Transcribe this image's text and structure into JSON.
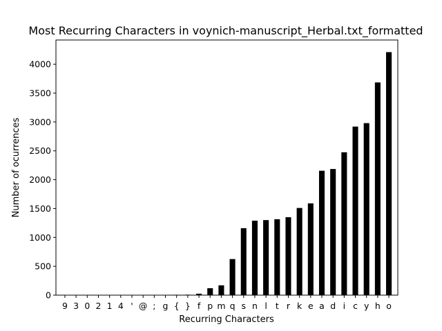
{
  "chart_data": {
    "type": "bar",
    "title": "Most Recurring Characters in voynich-manuscript_Herbal.txt_formatted",
    "xlabel": "Recurring Characters",
    "ylabel": "Number of ocurrences",
    "categories": [
      "9",
      "3",
      "0",
      "2",
      "1",
      "4",
      "'",
      "@",
      ";",
      "g",
      "{",
      "}",
      "f",
      "p",
      "m",
      "q",
      "s",
      "n",
      "l",
      "t",
      "r",
      "k",
      "e",
      "a",
      "d",
      "i",
      "c",
      "y",
      "h",
      "o"
    ],
    "values": [
      1,
      1,
      1,
      1,
      1,
      1,
      1,
      2,
      2,
      5,
      7,
      8,
      25,
      120,
      170,
      625,
      1160,
      1290,
      1300,
      1315,
      1350,
      1510,
      1590,
      2155,
      2185,
      2475,
      2920,
      2980,
      3685,
      4210
    ],
    "ylim": [
      0,
      4420
    ],
    "yticks": [
      0,
      500,
      1000,
      1500,
      2000,
      2500,
      3000,
      3500,
      4000
    ],
    "grid": false,
    "bar_color": "#000000"
  }
}
